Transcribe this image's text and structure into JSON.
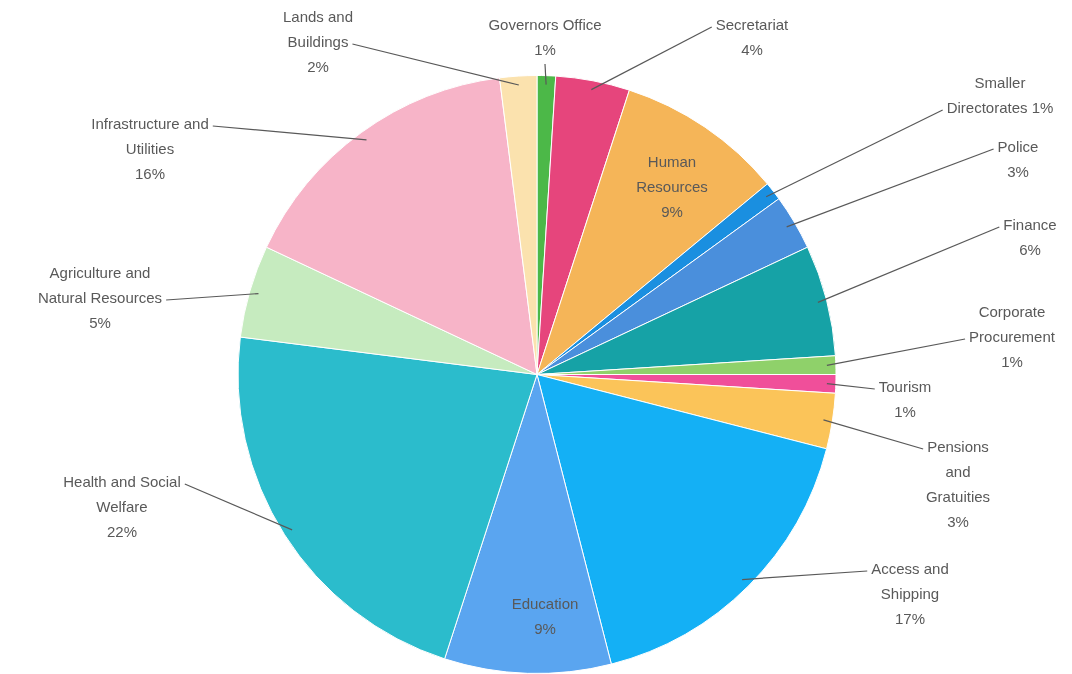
{
  "chart_data": {
    "type": "pie",
    "categories": [
      "Governors Office",
      "Secretariat",
      "Human Resources",
      "Smaller Directorates",
      "Police",
      "Finance",
      "Corporate Procurement",
      "Tourism",
      "Pensions and Gratuities",
      "Access and Shipping",
      "Education",
      "Health and Social Welfare",
      "Agriculture and Natural Resources",
      "Infrastructure and Utilities",
      "Lands and Buildings"
    ],
    "values": [
      1,
      4,
      9,
      1,
      3,
      6,
      1,
      1,
      3,
      17,
      9,
      22,
      5,
      16,
      2
    ],
    "colors": [
      "#4cb848",
      "#e6457c",
      "#f5b558",
      "#1a8fe0",
      "#4a8fdc",
      "#16a2a6",
      "#8fd16a",
      "#f04f9a",
      "#fbc459",
      "#14b0f5",
      "#5aa5f0",
      "#2bbccc",
      "#c6ebbf",
      "#f7b4c8",
      "#fbe2ae"
    ],
    "value_labels": [
      "1%",
      "4%",
      "9%",
      "1%",
      "3%",
      "6%",
      "1%",
      "1%",
      "3%",
      "17%",
      "9%",
      "22%",
      "5%",
      "16%",
      "2%"
    ],
    "legend": false
  }
}
